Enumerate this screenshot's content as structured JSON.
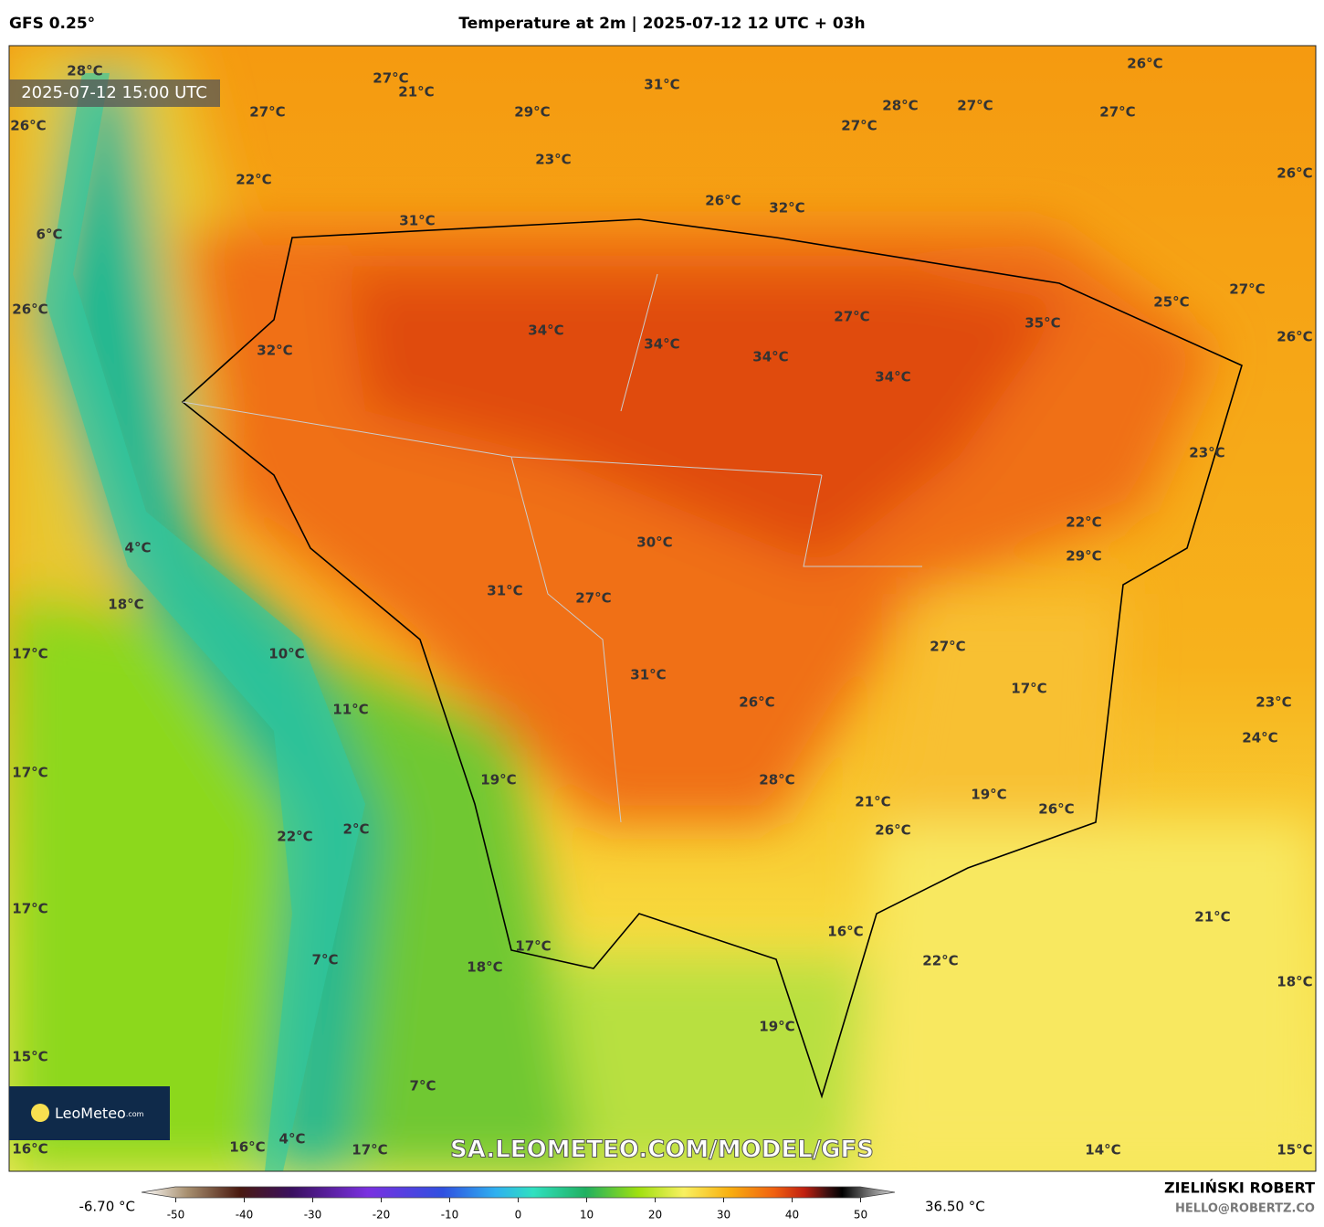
{
  "header": {
    "model": "GFS 0.25°",
    "title": "Temperature at 2m | 2025-07-12 12 UTC + 03h"
  },
  "valid_time": "2025-07-12 15:00 UTC",
  "watermark": "SA.LEOMETEO.COM/MODEL/GFS",
  "logo": {
    "name": "LeoMeteo",
    "suffix": ".com"
  },
  "map_labels": [
    "28°C",
    "27°C",
    "21°C",
    "27°C",
    "29°C",
    "31°C",
    "26°C",
    "28°C",
    "27°C",
    "27°C",
    "27°C",
    "26°C",
    "22°C",
    "23°C",
    "26°C",
    "26°C",
    "32°C",
    "31°C",
    "6°C",
    "25°C",
    "27°C",
    "26°C",
    "27°C",
    "35°C",
    "34°C",
    "34°C",
    "32°C",
    "34°C",
    "26°C",
    "34°C",
    "23°C",
    "22°C",
    "4°C",
    "30°C",
    "29°C",
    "31°C",
    "27°C",
    "18°C",
    "27°C",
    "17°C",
    "10°C",
    "31°C",
    "17°C",
    "26°C",
    "23°C",
    "11°C",
    "24°C",
    "17°C",
    "19°C",
    "28°C",
    "19°C",
    "21°C",
    "26°C",
    "2°C",
    "26°C",
    "22°C",
    "17°C",
    "21°C",
    "16°C",
    "17°C",
    "7°C",
    "22°C",
    "18°C",
    "18°C",
    "19°C",
    "15°C",
    "7°C",
    "16°C",
    "16°C",
    "4°C",
    "17°C",
    "14°C",
    "15°C"
  ],
  "colorbar": {
    "min_label": "-6.70 °C",
    "max_label": "36.50 °C",
    "lim": [
      -55,
      55
    ],
    "ticks": [
      -50,
      -40,
      -30,
      -20,
      -10,
      0,
      10,
      20,
      30,
      40,
      50
    ]
  },
  "credits": {
    "author": "ZIELIŃSKI ROBERT",
    "email": "HELLO@ROBERTZ.CO"
  }
}
